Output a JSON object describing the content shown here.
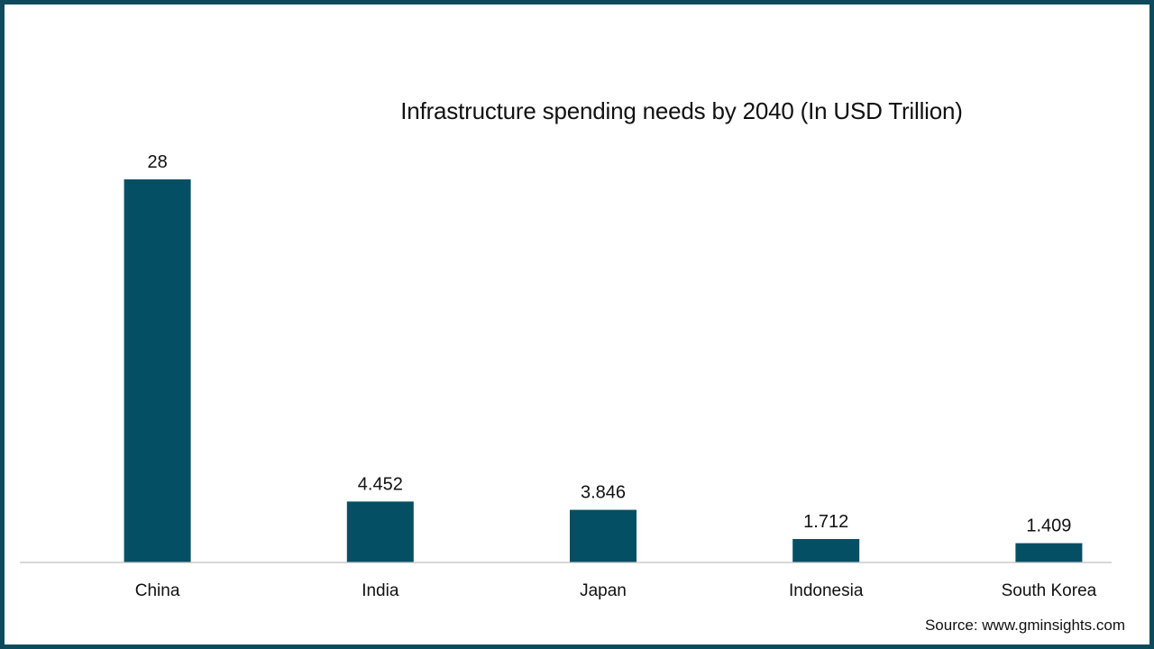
{
  "chart_data": {
    "type": "bar",
    "title": "Infrastructure spending needs by 2040 (In USD Trillion)",
    "xlabel": "",
    "ylabel": "",
    "categories": [
      "China",
      "India",
      "Japan",
      "Indonesia",
      "South Korea"
    ],
    "values": [
      28,
      4.452,
      3.846,
      1.712,
      1.409
    ],
    "data_labels": [
      "28",
      "4.452",
      "3.846",
      "1.712",
      "1.409"
    ],
    "ylim": [
      0,
      28
    ],
    "grid": false,
    "legend": "none",
    "bar_color": "#054f64"
  },
  "footer": {
    "source": "Source: www.gminsights.com"
  },
  "colors": {
    "frame": "#0d4a5e",
    "bar": "#054f64",
    "axis": "#bfbfbf"
  }
}
